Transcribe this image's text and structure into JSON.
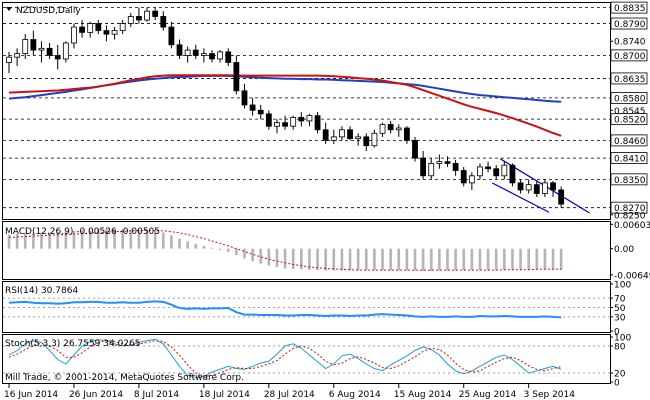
{
  "chart_data": {
    "type": "candlestick",
    "symbol_label": "NZDUSD,Daily",
    "watermark": "Mill Trade, © 2001-2014, MetaQuotes Software Corp.",
    "price_axis": {
      "ylim": [
        0.8238,
        0.8848
      ],
      "tick_labels": [
        "0.8835",
        "0.8790",
        "0.8740",
        "0.8700",
        "0.8635",
        "0.8580",
        "0.8545",
        "0.8520",
        "0.8460",
        "0.8410",
        "0.8350",
        "0.8270",
        "0.8250"
      ],
      "tick_values": [
        0.8835,
        0.879,
        0.874,
        0.87,
        0.8635,
        0.858,
        0.8545,
        0.852,
        0.846,
        0.841,
        0.835,
        0.827,
        0.825
      ],
      "highlighted_levels": [
        0.8835,
        0.879,
        0.87,
        0.8635,
        0.858,
        0.852,
        0.846,
        0.841,
        0.835,
        0.827
      ]
    },
    "x_labels": [
      "16 Jun 2014",
      "26 Jun 2014",
      "8 Jul 2014",
      "18 Jul 2014",
      "28 Jul 2014",
      "6 Aug 2014",
      "15 Aug 2014",
      "25 Aug 2014",
      "3 Sep 2014"
    ],
    "x_label_index": [
      0,
      8,
      16,
      24,
      32,
      40,
      48,
      56,
      64
    ],
    "candles": [
      [
        0.868,
        0.871,
        0.865,
        0.8695
      ],
      [
        0.8695,
        0.872,
        0.867,
        0.8705
      ],
      [
        0.8705,
        0.876,
        0.869,
        0.8745
      ],
      [
        0.8745,
        0.877,
        0.87,
        0.8715
      ],
      [
        0.8715,
        0.874,
        0.868,
        0.872
      ],
      [
        0.872,
        0.8735,
        0.869,
        0.87
      ],
      [
        0.87,
        0.873,
        0.866,
        0.869
      ],
      [
        0.869,
        0.874,
        0.868,
        0.8735
      ],
      [
        0.8735,
        0.879,
        0.872,
        0.878
      ],
      [
        0.878,
        0.88,
        0.875,
        0.8765
      ],
      [
        0.8765,
        0.8795,
        0.875,
        0.879
      ],
      [
        0.879,
        0.88,
        0.876,
        0.877
      ],
      [
        0.877,
        0.8785,
        0.874,
        0.876
      ],
      [
        0.876,
        0.878,
        0.8745,
        0.877
      ],
      [
        0.877,
        0.88,
        0.876,
        0.879
      ],
      [
        0.879,
        0.882,
        0.878,
        0.881
      ],
      [
        0.881,
        0.8835,
        0.879,
        0.88
      ],
      [
        0.88,
        0.8835,
        0.8795,
        0.8825
      ],
      [
        0.8825,
        0.8835,
        0.88,
        0.881
      ],
      [
        0.881,
        0.8825,
        0.877,
        0.878
      ],
      [
        0.878,
        0.8795,
        0.872,
        0.873
      ],
      [
        0.873,
        0.8745,
        0.869,
        0.87
      ],
      [
        0.87,
        0.8725,
        0.868,
        0.8715
      ],
      [
        0.8715,
        0.873,
        0.869,
        0.87
      ],
      [
        0.87,
        0.872,
        0.868,
        0.8705
      ],
      [
        0.8705,
        0.8715,
        0.868,
        0.869
      ],
      [
        0.869,
        0.8715,
        0.868,
        0.871
      ],
      [
        0.871,
        0.872,
        0.867,
        0.868
      ],
      [
        0.868,
        0.87,
        0.859,
        0.86
      ],
      [
        0.86,
        0.862,
        0.855,
        0.856
      ],
      [
        0.856,
        0.858,
        0.853,
        0.8545
      ],
      [
        0.8545,
        0.856,
        0.852,
        0.8535
      ],
      [
        0.8535,
        0.8545,
        0.849,
        0.85
      ],
      [
        0.85,
        0.852,
        0.848,
        0.851
      ],
      [
        0.851,
        0.853,
        0.849,
        0.85
      ],
      [
        0.85,
        0.853,
        0.849,
        0.8525
      ],
      [
        0.8525,
        0.854,
        0.85,
        0.8515
      ],
      [
        0.8515,
        0.8535,
        0.85,
        0.853
      ],
      [
        0.853,
        0.854,
        0.848,
        0.849
      ],
      [
        0.849,
        0.851,
        0.845,
        0.846
      ],
      [
        0.846,
        0.849,
        0.845,
        0.847
      ],
      [
        0.847,
        0.85,
        0.846,
        0.849
      ],
      [
        0.849,
        0.85,
        0.846,
        0.8465
      ],
      [
        0.8465,
        0.848,
        0.8445,
        0.847
      ],
      [
        0.847,
        0.848,
        0.843,
        0.8445
      ],
      [
        0.8445,
        0.849,
        0.844,
        0.848
      ],
      [
        0.848,
        0.851,
        0.847,
        0.8505
      ],
      [
        0.8505,
        0.8515,
        0.848,
        0.849
      ],
      [
        0.849,
        0.8505,
        0.847,
        0.8495
      ],
      [
        0.8495,
        0.85,
        0.845,
        0.846
      ],
      [
        0.846,
        0.847,
        0.84,
        0.841
      ],
      [
        0.841,
        0.843,
        0.835,
        0.836
      ],
      [
        0.836,
        0.841,
        0.835,
        0.8395
      ],
      [
        0.8395,
        0.842,
        0.838,
        0.84
      ],
      [
        0.84,
        0.8415,
        0.8385,
        0.8395
      ],
      [
        0.8395,
        0.8405,
        0.836,
        0.8375
      ],
      [
        0.8375,
        0.8385,
        0.833,
        0.834
      ],
      [
        0.834,
        0.837,
        0.832,
        0.836
      ],
      [
        0.836,
        0.8395,
        0.835,
        0.8385
      ],
      [
        0.8385,
        0.84,
        0.837,
        0.838
      ],
      [
        0.838,
        0.839,
        0.835,
        0.836
      ],
      [
        0.836,
        0.84,
        0.835,
        0.839
      ],
      [
        0.839,
        0.8395,
        0.833,
        0.834
      ],
      [
        0.834,
        0.835,
        0.831,
        0.832
      ],
      [
        0.832,
        0.835,
        0.831,
        0.8335
      ],
      [
        0.8335,
        0.8345,
        0.83,
        0.831
      ],
      [
        0.831,
        0.835,
        0.83,
        0.834
      ],
      [
        0.834,
        0.8345,
        0.83,
        0.832
      ],
      [
        0.832,
        0.833,
        0.827,
        0.828
      ]
    ],
    "ma_slow": {
      "color": "#1f3fbf",
      "start_index": 0,
      "values": [
        0.8578,
        0.858,
        0.8582,
        0.8585,
        0.8588,
        0.8591,
        0.8594,
        0.8597,
        0.8601,
        0.8604,
        0.8608,
        0.8612,
        0.8616,
        0.8619,
        0.8623,
        0.8626,
        0.8629,
        0.8632,
        0.8634,
        0.8636,
        0.8638,
        0.8639,
        0.864,
        0.8641,
        0.8642,
        0.8642,
        0.8642,
        0.8642,
        0.8641,
        0.864,
        0.8638,
        0.8637,
        0.8636,
        0.8635,
        0.8634,
        0.8634,
        0.8633,
        0.8633,
        0.8632,
        0.8632,
        0.8631,
        0.863,
        0.8629,
        0.8628,
        0.8627,
        0.8626,
        0.8625,
        0.8623,
        0.8621,
        0.8619,
        0.8617,
        0.8614,
        0.861,
        0.8606,
        0.8602,
        0.8598,
        0.8594,
        0.8591,
        0.8588,
        0.8586,
        0.8584,
        0.8582,
        0.858,
        0.8578,
        0.8576,
        0.8574,
        0.8572,
        0.857,
        0.8569
      ]
    },
    "ma_fast": {
      "color": "#cc1111",
      "start_index": 0,
      "values": [
        0.8595,
        0.8596,
        0.8597,
        0.8598,
        0.8599,
        0.86,
        0.8601,
        0.8603,
        0.8605,
        0.8607,
        0.8609,
        0.8612,
        0.8616,
        0.862,
        0.8625,
        0.863,
        0.8634,
        0.8638,
        0.8641,
        0.8643,
        0.8644,
        0.8644,
        0.8644,
        0.8644,
        0.8644,
        0.8644,
        0.8644,
        0.8644,
        0.8643,
        0.8643,
        0.8643,
        0.8643,
        0.8643,
        0.8643,
        0.8643,
        0.8643,
        0.8643,
        0.8643,
        0.8643,
        0.8642,
        0.8641,
        0.864,
        0.8638,
        0.8636,
        0.8634,
        0.8632,
        0.8629,
        0.8625,
        0.8621,
        0.8617,
        0.861,
        0.8602,
        0.8594,
        0.8586,
        0.8578,
        0.857,
        0.8562,
        0.8555,
        0.8549,
        0.8543,
        0.8537,
        0.853,
        0.8523,
        0.8515,
        0.8507,
        0.8499,
        0.849,
        0.8481,
        0.8473
      ]
    },
    "channel_upper": {
      "from": [
        60.5,
        0.8408
      ],
      "to": [
        71.5,
        0.8255
      ]
    },
    "channel_lower": {
      "from": [
        59.5,
        0.834
      ],
      "to": [
        66.5,
        0.8257
      ]
    },
    "macd": {
      "label": "MACD(12,26,9) -0.00526 -0.00505",
      "ylim": [
        -0.0075,
        0.0066
      ],
      "tick_labels": [
        "0.00603",
        "0.00",
        "-0.00649"
      ],
      "tick_values": [
        0.00603,
        0.0,
        -0.00649
      ],
      "histogram": [
        0.0035,
        0.0037,
        0.0038,
        0.0039,
        0.004,
        0.004,
        0.0041,
        0.0042,
        0.0044,
        0.0046,
        0.0047,
        0.0048,
        0.0048,
        0.0048,
        0.0048,
        0.0048,
        0.0047,
        0.0046,
        0.0044,
        0.004,
        0.0033,
        0.0025,
        0.0018,
        0.0012,
        0.0007,
        0.0002,
        -0.0003,
        -0.0008,
        -0.0016,
        -0.0024,
        -0.0031,
        -0.0037,
        -0.0042,
        -0.0046,
        -0.0049,
        -0.005,
        -0.0051,
        -0.0052,
        -0.0053,
        -0.0054,
        -0.0054,
        -0.0054,
        -0.0054,
        -0.0054,
        -0.0054,
        -0.0054,
        -0.0054,
        -0.0054,
        -0.0054,
        -0.0054,
        -0.0054,
        -0.0055,
        -0.0055,
        -0.0054,
        -0.0054,
        -0.0054,
        -0.0053,
        -0.0053,
        -0.0053,
        -0.0053,
        -0.0053,
        -0.0053,
        -0.0052,
        -0.0052,
        -0.0052,
        -0.0052,
        -0.0052,
        -0.0052,
        -0.0053
      ],
      "signal": [
        0.0028,
        0.0029,
        0.003,
        0.0031,
        0.0032,
        0.0033,
        0.0034,
        0.0035,
        0.0036,
        0.0037,
        0.0038,
        0.004,
        0.0041,
        0.0042,
        0.0043,
        0.0044,
        0.0045,
        0.0045,
        0.0045,
        0.0044,
        0.0042,
        0.0039,
        0.0035,
        0.003,
        0.0025,
        0.0019,
        0.0013,
        0.0007,
        0.0,
        -0.0007,
        -0.0014,
        -0.002,
        -0.0026,
        -0.0031,
        -0.0035,
        -0.0039,
        -0.0042,
        -0.0045,
        -0.0047,
        -0.0049,
        -0.005,
        -0.0051,
        -0.0052,
        -0.0053,
        -0.0053,
        -0.0053,
        -0.0053,
        -0.0053,
        -0.0053,
        -0.0053,
        -0.0053,
        -0.0053,
        -0.0053,
        -0.0053,
        -0.0053,
        -0.0053,
        -0.0053,
        -0.0053,
        -0.0053,
        -0.0053,
        -0.0053,
        -0.0052,
        -0.0052,
        -0.0052,
        -0.0052,
        -0.0051,
        -0.0051,
        -0.0051,
        -0.0051
      ]
    },
    "rsi": {
      "label": "RSI(14) 30.7864",
      "ylim": [
        0,
        100
      ],
      "tick_labels": [
        "100",
        "70",
        "50",
        "30",
        "0"
      ],
      "tick_values": [
        100,
        70,
        50,
        30,
        0
      ],
      "dashed_levels": [
        70,
        50,
        30
      ],
      "values": [
        60,
        61,
        62,
        60,
        59,
        59,
        58,
        59,
        61,
        61,
        62,
        62,
        60,
        60,
        61,
        60,
        60,
        62,
        63,
        62,
        56,
        49,
        47,
        48,
        47,
        48,
        48,
        49,
        40,
        35,
        35,
        34,
        34,
        34,
        33,
        33,
        34,
        34,
        33,
        32,
        33,
        33,
        32,
        33,
        33,
        35,
        36,
        35,
        34,
        33,
        31,
        30,
        31,
        30,
        30,
        31,
        30,
        30,
        32,
        31,
        31,
        32,
        31,
        30,
        30,
        30,
        31,
        30,
        29
      ]
    },
    "stoch": {
      "label": "Stoch(5,3,3) 26.7559 34.0265",
      "ylim": [
        0,
        100
      ],
      "tick_labels": [
        "100",
        "80",
        "20",
        "0"
      ],
      "tick_values": [
        100,
        80,
        20,
        0
      ],
      "dashed_levels": [
        80,
        20
      ],
      "main": [
        60,
        70,
        85,
        92,
        88,
        70,
        50,
        40,
        60,
        80,
        90,
        94,
        92,
        85,
        80,
        82,
        88,
        92,
        95,
        85,
        60,
        35,
        15,
        10,
        12,
        22,
        28,
        35,
        30,
        28,
        35,
        42,
        46,
        62,
        80,
        85,
        75,
        60,
        45,
        30,
        40,
        58,
        62,
        52,
        40,
        30,
        25,
        38,
        48,
        58,
        70,
        78,
        72,
        60,
        40,
        25,
        18,
        25,
        35,
        45,
        55,
        60,
        50,
        35,
        20,
        25,
        30,
        35,
        28
      ],
      "signal": [
        55,
        62,
        72,
        82,
        86,
        80,
        70,
        55,
        55,
        65,
        78,
        88,
        92,
        90,
        85,
        82,
        84,
        88,
        92,
        90,
        78,
        60,
        38,
        20,
        12,
        15,
        20,
        28,
        32,
        30,
        30,
        35,
        40,
        48,
        62,
        75,
        80,
        75,
        62,
        46,
        38,
        42,
        52,
        56,
        50,
        42,
        32,
        30,
        36,
        46,
        56,
        68,
        75,
        72,
        60,
        42,
        28,
        22,
        25,
        35,
        44,
        52,
        55,
        48,
        36,
        28,
        25,
        30,
        34
      ]
    }
  }
}
